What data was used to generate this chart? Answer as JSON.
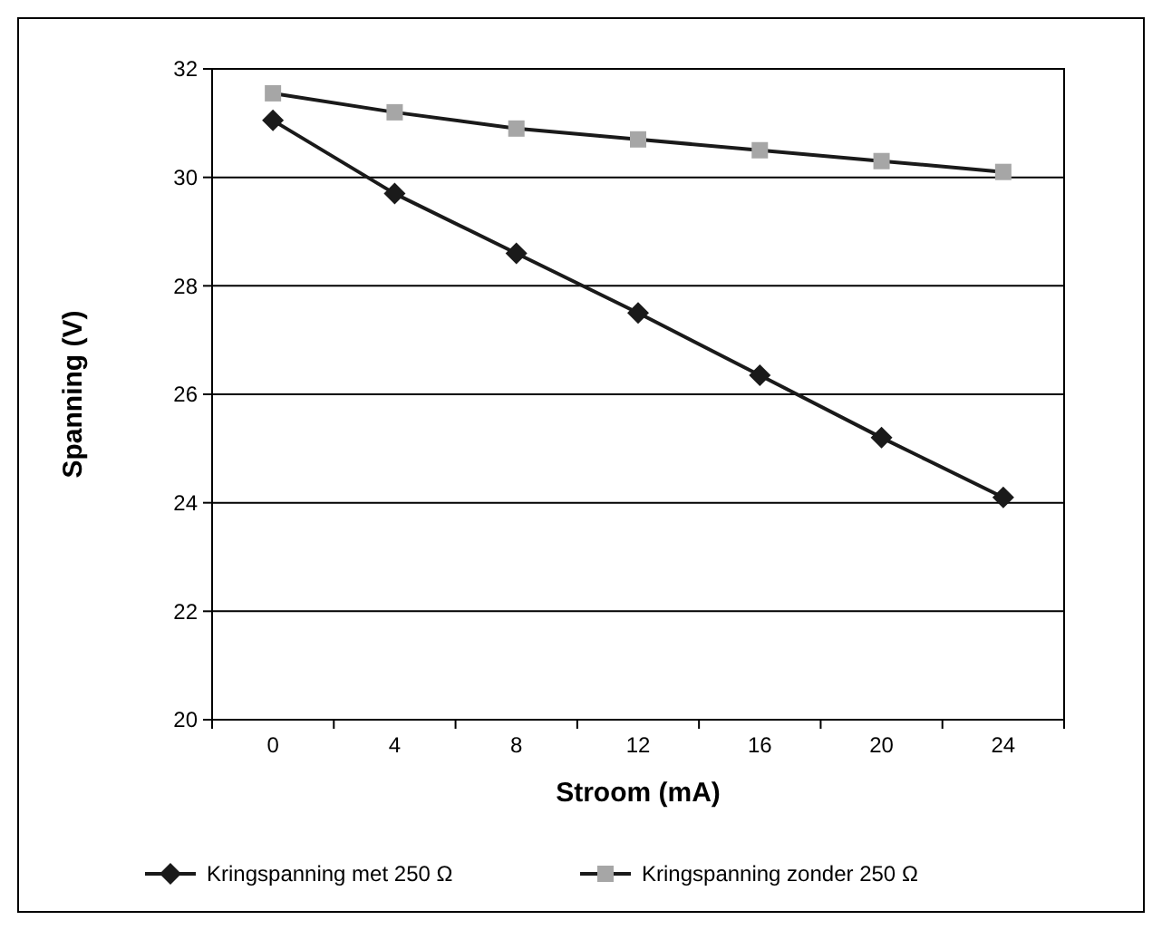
{
  "chart_data": {
    "type": "line",
    "xlabel": "Stroom (mA)",
    "ylabel": "Spanning (V)",
    "categories": [
      "0",
      "4",
      "8",
      "12",
      "16",
      "20",
      "24"
    ],
    "series": [
      {
        "name": "Kringspanning met 250 Ω",
        "color": "#1a1a1a",
        "marker": "diamond",
        "values": [
          31.05,
          29.7,
          28.6,
          27.5,
          26.35,
          25.2,
          24.1
        ]
      },
      {
        "name": "Kringspanning zonder 250 Ω",
        "color": "#a6a6a6",
        "marker": "square",
        "values": [
          31.55,
          31.2,
          30.9,
          30.7,
          30.5,
          30.3,
          30.1
        ]
      }
    ],
    "ylim": [
      20,
      32
    ],
    "yticks": [
      20,
      22,
      24,
      26,
      28,
      30,
      32
    ],
    "grid": "y",
    "legend": "bottom",
    "line_style": "solid"
  }
}
